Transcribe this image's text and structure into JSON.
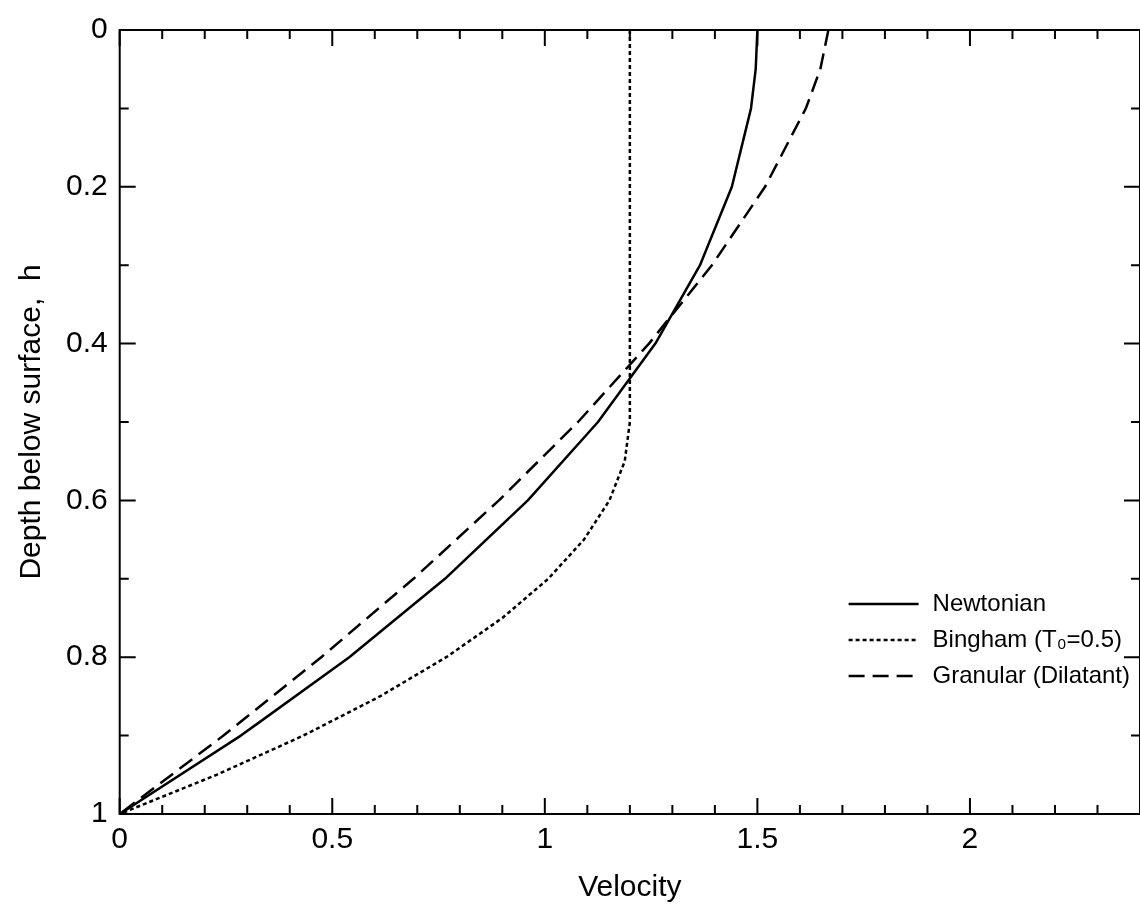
{
  "chart_data": {
    "type": "line",
    "xlabel": "Velocity",
    "ylabel": "Depth below surface,  h",
    "xlim": [
      0,
      2.4
    ],
    "ylim": [
      1,
      0
    ],
    "xticks": [
      0,
      {
        "value": 0.1,
        "label": null
      },
      {
        "value": 0.2,
        "label": null
      },
      {
        "value": 0.3,
        "label": null
      },
      {
        "value": 0.4,
        "label": null
      },
      0.5,
      {
        "value": 0.6,
        "label": null
      },
      {
        "value": 0.7,
        "label": null
      },
      {
        "value": 0.8,
        "label": null
      },
      {
        "value": 0.9,
        "label": null
      },
      1,
      {
        "value": 1.1,
        "label": null
      },
      {
        "value": 1.2,
        "label": null
      },
      {
        "value": 1.3,
        "label": null
      },
      {
        "value": 1.4,
        "label": null
      },
      1.5,
      {
        "value": 1.6,
        "label": null
      },
      {
        "value": 1.7,
        "label": null
      },
      {
        "value": 1.8,
        "label": null
      },
      {
        "value": 1.9,
        "label": null
      },
      2,
      {
        "value": 2.1,
        "label": null
      },
      {
        "value": 2.2,
        "label": null
      },
      {
        "value": 2.3,
        "label": null
      }
    ],
    "yticks": [
      0,
      {
        "value": 0.1,
        "label": null
      },
      0.2,
      {
        "value": 0.3,
        "label": null
      },
      0.4,
      {
        "value": 0.5,
        "label": null
      },
      0.6,
      {
        "value": 0.7,
        "label": null
      },
      0.8,
      {
        "value": 0.9,
        "label": null
      },
      1
    ],
    "grid": false,
    "legend": "bottom right",
    "marker": "none",
    "series": [
      {
        "name": "Newtonian",
        "color": "#000000",
        "line_style": "solid",
        "x": [
          1.5,
          1.496,
          1.485,
          1.44,
          1.365,
          1.26,
          1.125,
          0.96,
          0.765,
          0.54,
          0.285,
          0
        ],
        "values": [
          0,
          0.05,
          0.1,
          0.2,
          0.3,
          0.4,
          0.5,
          0.6,
          0.7,
          0.8,
          0.9,
          1
        ]
      },
      {
        "name": "Bingham (T₀=0.5)",
        "color": "#000000",
        "line_style": "dotted",
        "x": [
          1.2,
          1.2,
          1.2,
          1.188,
          1.152,
          1.092,
          1.008,
          0.9,
          0.768,
          0.612,
          0.432,
          0.228,
          0
        ],
        "values": [
          0,
          0.25,
          0.5,
          0.55,
          0.6,
          0.65,
          0.7,
          0.75,
          0.8,
          0.85,
          0.9,
          0.95,
          1
        ]
      },
      {
        "name": "Granular (Dilatant)",
        "color": "#000000",
        "line_style": "dashed",
        "x": [
          1.667,
          1.648,
          1.614,
          1.518,
          1.393,
          1.245,
          1.078,
          0.892,
          0.691,
          0.474,
          0.244,
          0
        ],
        "values": [
          0,
          0.05,
          0.1,
          0.2,
          0.3,
          0.4,
          0.5,
          0.6,
          0.7,
          0.8,
          0.9,
          1
        ]
      }
    ]
  }
}
